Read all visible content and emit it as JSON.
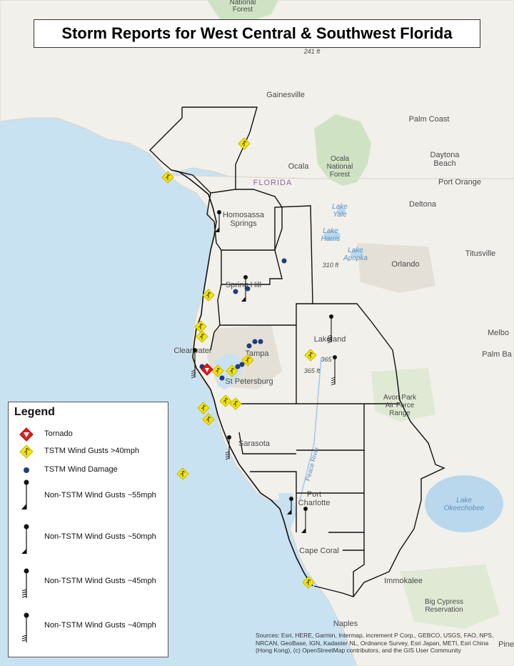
{
  "title": "Storm Reports for West Central & Southwest Florida",
  "legend": {
    "title": "Legend",
    "items": [
      {
        "label": "Tornado",
        "icon": "tornado-icon",
        "color": "#e02020"
      },
      {
        "label": "TSTM Wind Gusts >40mph",
        "icon": "wind-gust-icon",
        "color": "#f5e600"
      },
      {
        "label": "TSTM Wind Damage",
        "icon": "wind-damage-icon",
        "color": "#1f3d7a"
      },
      {
        "label": "Non-TSTM Wind Gusts ~55mph",
        "icon": "wind-barb-55-icon"
      },
      {
        "label": "Non-TSTM Wind Gusts ~50mph",
        "icon": "wind-barb-50-icon"
      },
      {
        "label": "Non-TSTM Wind Gusts ~45mph",
        "icon": "wind-barb-45-icon"
      },
      {
        "label": "Non-TSTM Wind Gusts ~40mph",
        "icon": "wind-barb-40-icon"
      }
    ]
  },
  "places": {
    "national_forest": "National",
    "national_forest2": "Forest",
    "elev_241": "241 ft",
    "gainesville": "Gainesville",
    "palm_coast": "Palm Coast",
    "ocala_nf1": "Ocala",
    "ocala_nf2": "National",
    "ocala_nf3": "Forest",
    "ocala": "Ocala",
    "daytona1": "Daytona",
    "daytona2": "Beach",
    "port_orange": "Port Orange",
    "florida": "FLORIDA",
    "deltona": "Deltona",
    "homosassa1": "Homosassa",
    "homosassa2": "Springs",
    "lake_yale1": "Lake",
    "lake_yale2": "Yale",
    "lake_harris1": "Lake",
    "lake_harris2": "Harris",
    "lake_apopka1": "Lake",
    "lake_apopka2": "Apopka",
    "titusville": "Titusville",
    "elev_310": "310 ft",
    "orlando": "Orlando",
    "spring_hill": "Spring Hill",
    "lakeland": "Lakeland",
    "melbourne": "Melbo",
    "clearwater": "Clearwater",
    "tampa": "Tampa",
    "palm_bay": "Palm Ba",
    "elev_365a": "365",
    "elev_365b": "365 ft",
    "st_petersburg": "St Petersburg",
    "avon_park1": "Avon Park",
    "avon_park2": "Air Force",
    "avon_park3": "Range",
    "sarasota": "Sarasota",
    "peace_river": "Peace River",
    "lake_okeechobee1": "Lake",
    "lake_okeechobee2": "Okeechobee",
    "port_charlotte1": "Port",
    "port_charlotte2": "Charlotte",
    "cape_coral": "Cape Coral",
    "immokalee": "Immokalee",
    "big_cypress1": "Big Cypress",
    "big_cypress2": "Reservation",
    "naples": "Naples",
    "pine": "Pine"
  },
  "attribution": "Sources: Esri, HERE, Garmin, Intermap, increment P Corp., GEBCO, USGS, FAO, NPS, NRCAN, GeoBase, IGN, Kadaster NL, Ordnance Survey, Esri Japan, METI, Esri China (Hong Kong), (c) OpenStreetMap contributors, and the GIS User Community",
  "colors": {
    "water": "#c9e2f2",
    "land": "#f2f0ea",
    "forest": "#cfe3c4",
    "urban": "#e6e2dc",
    "tornado": "#e02020",
    "gust": "#f5e600",
    "damage": "#1f3d7a"
  }
}
